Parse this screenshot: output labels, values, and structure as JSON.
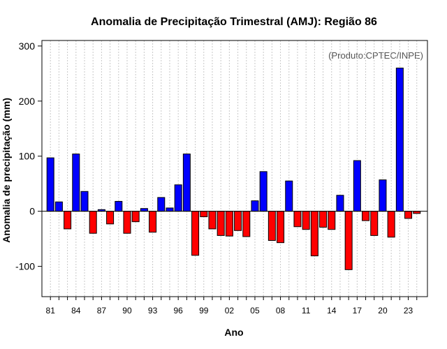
{
  "chart_data": {
    "type": "bar",
    "title": "Anomalia de Precipitação Trimestral (AMJ): Região 86",
    "xlabel": "Ano",
    "ylabel": "Anomalia de precipitação (mm)",
    "source_note": "(Produto:CPTEC/INPE)",
    "ylim": [
      -155,
      310
    ],
    "yticks": [
      -100,
      0,
      100,
      200,
      300
    ],
    "yticklabels": [
      "-100",
      "0",
      "100",
      "200",
      "300"
    ],
    "xtick_labels": [
      "81",
      "84",
      "87",
      "90",
      "93",
      "96",
      "99",
      "02",
      "05",
      "08",
      "11",
      "14",
      "17",
      "20",
      "23"
    ],
    "xtick_years": [
      1981,
      1984,
      1987,
      1990,
      1993,
      1996,
      1999,
      2002,
      2005,
      2008,
      2011,
      2014,
      2017,
      2020,
      2023
    ],
    "grid": true,
    "positive_color": "#0000ff",
    "negative_color": "#ff0000",
    "years": [
      1981,
      1982,
      1983,
      1984,
      1985,
      1986,
      1987,
      1988,
      1989,
      1990,
      1991,
      1992,
      1993,
      1994,
      1995,
      1996,
      1997,
      1998,
      1999,
      2000,
      2001,
      2002,
      2003,
      2004,
      2005,
      2006,
      2007,
      2008,
      2009,
      2010,
      2011,
      2012,
      2013,
      2014,
      2015,
      2016,
      2017,
      2018,
      2019,
      2020,
      2021,
      2022,
      2023,
      2024
    ],
    "values": [
      97,
      17,
      -32,
      104,
      36,
      -40,
      3,
      -23,
      18,
      -40,
      -19,
      5,
      -38,
      25,
      6,
      48,
      104,
      -80,
      -10,
      -32,
      -44,
      -45,
      -35,
      -46,
      19,
      72,
      -53,
      -57,
      55,
      -28,
      -33,
      -81,
      -29,
      -33,
      29,
      -106,
      92,
      -17,
      -44,
      57,
      -47,
      260,
      -13,
      -4
    ]
  }
}
